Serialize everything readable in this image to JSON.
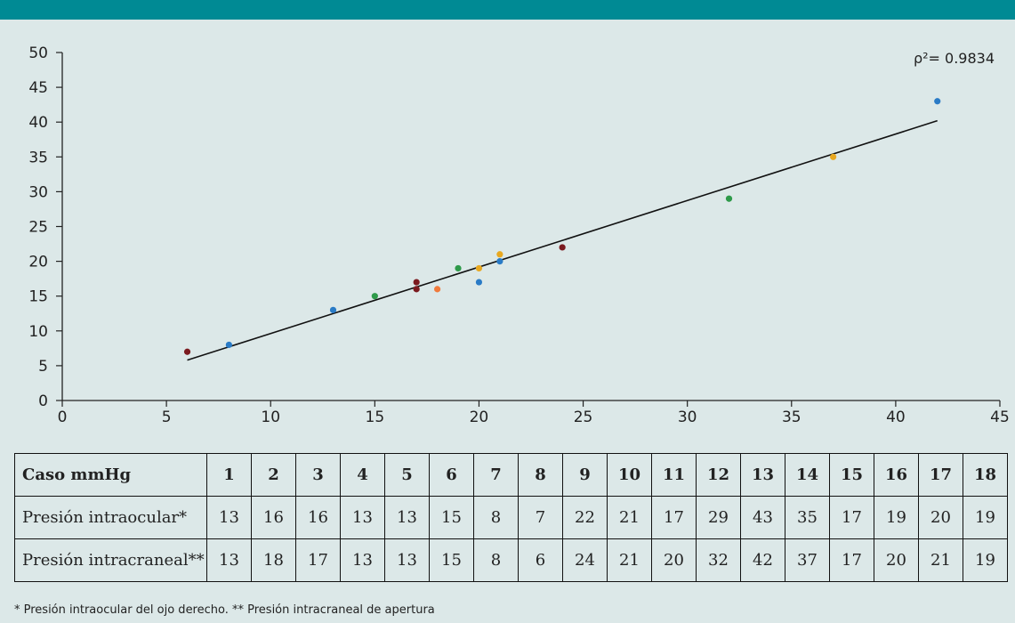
{
  "chart_data": {
    "type": "scatter",
    "xlim": [
      0,
      45
    ],
    "ylim": [
      0,
      50
    ],
    "xticks": [
      0,
      5,
      10,
      15,
      20,
      25,
      30,
      35,
      40,
      45
    ],
    "yticks": [
      0,
      5,
      10,
      15,
      20,
      25,
      30,
      35,
      40,
      45,
      50
    ],
    "points": [
      {
        "x": 6,
        "y": 7,
        "color": "#7b1a1f"
      },
      {
        "x": 8,
        "y": 8,
        "color": "#2a7bc6"
      },
      {
        "x": 13,
        "y": 13,
        "color": "#2a7bc6"
      },
      {
        "x": 15,
        "y": 15,
        "color": "#2e9a4a"
      },
      {
        "x": 17,
        "y": 17,
        "color": "#7b1a1f"
      },
      {
        "x": 17,
        "y": 16,
        "color": "#7b1a1f"
      },
      {
        "x": 18,
        "y": 16,
        "color": "#f07a3c"
      },
      {
        "x": 19,
        "y": 19,
        "color": "#2e9a4a"
      },
      {
        "x": 20,
        "y": 19,
        "color": "#e8a820"
      },
      {
        "x": 20,
        "y": 17,
        "color": "#2a7bc6"
      },
      {
        "x": 21,
        "y": 21,
        "color": "#e8a820"
      },
      {
        "x": 21,
        "y": 20,
        "color": "#2a7bc6"
      },
      {
        "x": 24,
        "y": 22,
        "color": "#7b1a1f"
      },
      {
        "x": 32,
        "y": 29,
        "color": "#2e9a4a"
      },
      {
        "x": 37,
        "y": 35,
        "color": "#e8a820"
      },
      {
        "x": 42,
        "y": 43,
        "color": "#2a7bc6"
      }
    ],
    "trendline": {
      "x": [
        6,
        42
      ],
      "y": [
        5.8,
        40.2
      ]
    },
    "annotation": "ρ²= 0.9834",
    "grid": false
  },
  "table": {
    "header_label": "Caso mmHg",
    "cases": [
      "1",
      "2",
      "3",
      "4",
      "5",
      "6",
      "7",
      "8",
      "9",
      "10",
      "11",
      "12",
      "13",
      "14",
      "15",
      "16",
      "17",
      "18"
    ],
    "rows": [
      {
        "label": "Presión intraocular*",
        "values": [
          "13",
          "16",
          "16",
          "13",
          "13",
          "15",
          "8",
          "7",
          "22",
          "21",
          "17",
          "29",
          "43",
          "35",
          "17",
          "19",
          "20",
          "19"
        ]
      },
      {
        "label": "Presión intracraneal**",
        "values": [
          "13",
          "18",
          "17",
          "13",
          "13",
          "15",
          "8",
          "6",
          "24",
          "21",
          "20",
          "32",
          "42",
          "37",
          "17",
          "20",
          "21",
          "19"
        ]
      }
    ]
  },
  "footnote": "* Presión intraocular del ojo derecho. ** Presión intracraneal de apertura"
}
